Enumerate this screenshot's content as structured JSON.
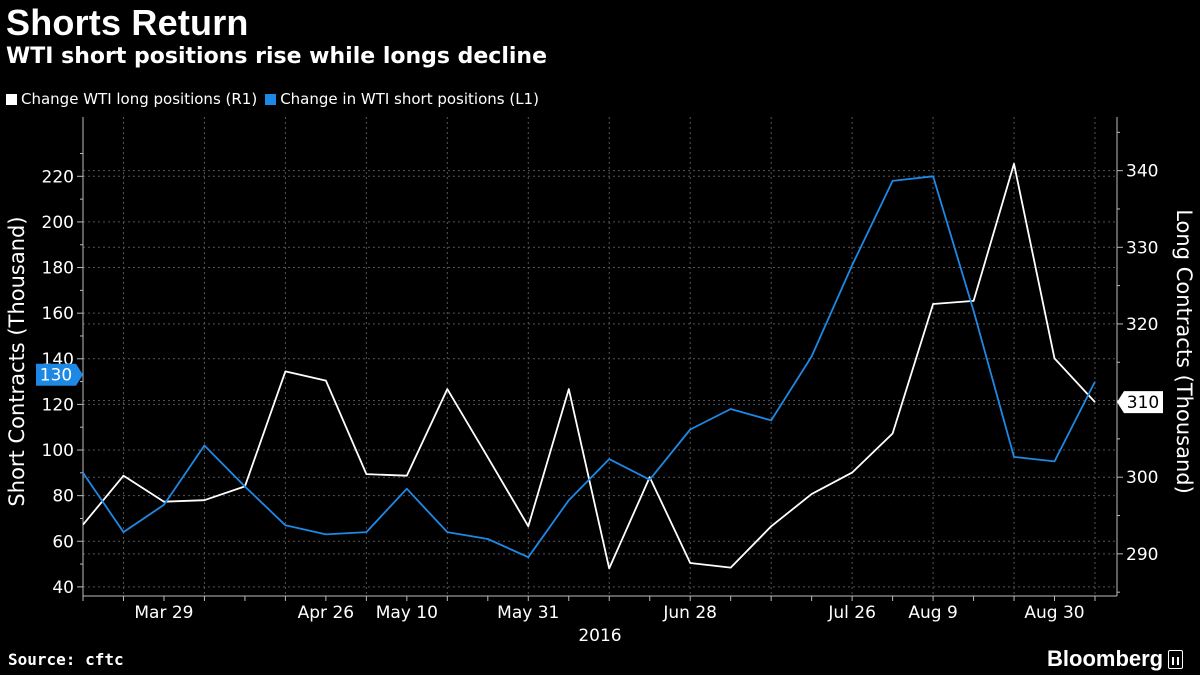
{
  "header": {
    "title": "Shorts Return",
    "subtitle": "WTI short positions rise while longs decline"
  },
  "legend": {
    "items": [
      {
        "label": "Change WTI long positions (R1)",
        "color": "#ffffff"
      },
      {
        "label": "Change in WTI short positions (L1)",
        "color": "#1e88e5"
      }
    ]
  },
  "footer": {
    "source": "Source: cftc",
    "brand": "Bloomberg"
  },
  "chart_data": {
    "type": "line",
    "x_labels": [
      "Mar 29",
      "Apr 26",
      "May 10",
      "May 31",
      "Jun 28",
      "Jul 26",
      "Aug 9",
      "Aug 30"
    ],
    "year_label": "2016",
    "x": [
      "Mar 15",
      "Mar 22",
      "Mar 29",
      "Apr 5",
      "Apr 12",
      "Apr 19",
      "Apr 26",
      "May 3",
      "May 10",
      "May 17",
      "May 24",
      "May 31",
      "Jun 7",
      "Jun 14",
      "Jun 21",
      "Jun 28",
      "Jul 5",
      "Jul 12",
      "Jul 19",
      "Jul 26",
      "Aug 2",
      "Aug 9",
      "Aug 16",
      "Aug 23",
      "Aug 30",
      "Sep 6"
    ],
    "left_axis": {
      "label": "Short Contracts (Thousand)",
      "ylim": [
        36,
        246
      ],
      "ticks": [
        40,
        60,
        80,
        100,
        120,
        140,
        160,
        180,
        200,
        220
      ]
    },
    "right_axis": {
      "label": "Long Contracts (Thousand)",
      "ylim": [
        284.5,
        347
      ],
      "ticks": [
        290,
        300,
        310,
        320,
        330,
        340
      ]
    },
    "series": [
      {
        "name": "Change WTI long positions (R1)",
        "axis": "right",
        "color": "#ffffff",
        "last_value_label": "310",
        "values": [
          293.8,
          300.2,
          296.8,
          297.0,
          298.8,
          313.8,
          312.6,
          300.4,
          300.2,
          311.5,
          302.6,
          293.6,
          311.5,
          288.1,
          300.0,
          288.8,
          288.2,
          293.6,
          297.8,
          300.6,
          305.7,
          322.6,
          323.0,
          340.9,
          315.5,
          309.8
        ]
      },
      {
        "name": "Change in WTI short positions (L1)",
        "axis": "left",
        "color": "#1e88e5",
        "last_value_label": "130",
        "values": [
          90,
          64,
          76,
          102,
          84,
          67,
          63,
          64,
          83,
          64,
          61,
          53,
          78,
          96,
          87,
          109,
          118,
          113,
          141,
          181,
          218,
          220,
          161,
          97,
          95,
          130
        ]
      }
    ],
    "grid": "dashed",
    "legend_position": "top-left"
  }
}
